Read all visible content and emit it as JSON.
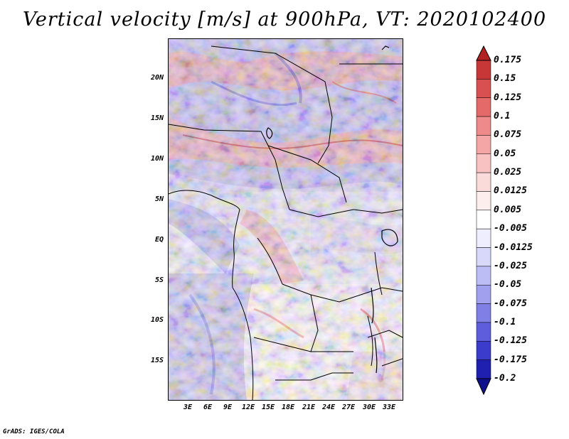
{
  "title": "Vertical velocity [m/s] at 900hPa, VT: 2020102400",
  "credit": "GrADS: IGES/COLA",
  "map": {
    "lat_labels": [
      "20N",
      "15N",
      "10N",
      "5N",
      "EQ",
      "5S",
      "10S",
      "15S"
    ],
    "lon_labels": [
      "3E",
      "6E",
      "9E",
      "12E",
      "15E",
      "18E",
      "21E",
      "24E",
      "27E",
      "30E",
      "33E"
    ]
  },
  "colorbar": {
    "labels": [
      "0.175",
      "0.15",
      "0.125",
      "0.1",
      "0.075",
      "0.05",
      "0.025",
      "0.0125",
      "0.005",
      "-0.005",
      "-0.0125",
      "-0.025",
      "-0.05",
      "-0.075",
      "-0.1",
      "-0.125",
      "-0.175",
      "-0.2"
    ],
    "colors": [
      "#b22222",
      "#c83737",
      "#d85050",
      "#e46a6a",
      "#ee8a8a",
      "#f4a6a6",
      "#f8c2c2",
      "#fbdada",
      "#fdeeee",
      "#ffffff",
      "#eeeeff",
      "#d8d8fb",
      "#bdbdf5",
      "#a0a0ee",
      "#7f7fe6",
      "#5e5edc",
      "#3b3bcc",
      "#2020b0",
      "#10108c"
    ]
  }
}
